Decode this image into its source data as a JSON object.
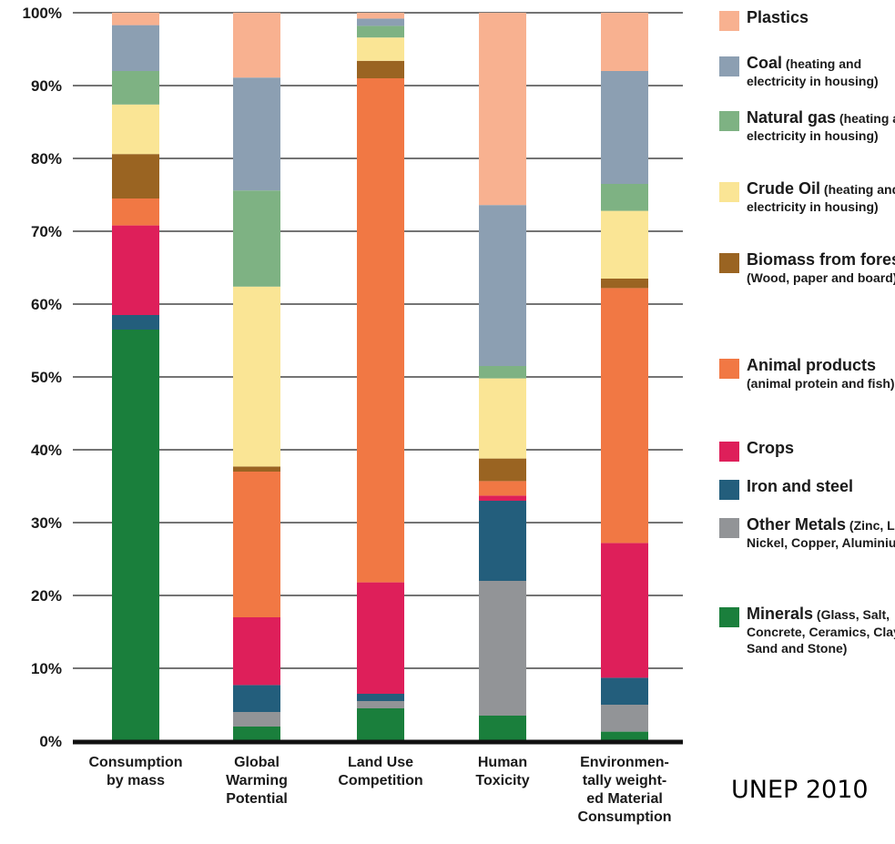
{
  "chart_data": {
    "type": "bar",
    "stacked": true,
    "categories": [
      [
        "Consumption",
        "by mass"
      ],
      [
        "Global",
        "Warming",
        "Potential"
      ],
      [
        "Land Use",
        "Competition"
      ],
      [
        "Human",
        "Toxicity"
      ],
      [
        "Environmen-",
        "tally weight-",
        "ed Material",
        "Consumption"
      ]
    ],
    "ylim": [
      0,
      100
    ],
    "yticks": [
      0,
      10,
      20,
      30,
      40,
      50,
      60,
      70,
      80,
      90,
      100
    ],
    "ytick_labels": [
      "0%",
      "10%",
      "20%",
      "30%",
      "40%",
      "50%",
      "60%",
      "70%",
      "80%",
      "90%",
      "100%"
    ],
    "grid": true,
    "legend_position": "right",
    "series": [
      {
        "name": "Minerals",
        "detail": "(Glass, Salt, Concrete, Ceramics, Clay, Sand and Stone)",
        "color": "#1a7f3c",
        "values": [
          56.5,
          2.0,
          4.5,
          3.5,
          1.3
        ]
      },
      {
        "name": "Other Metals",
        "detail": "(Zinc, Lead, Nickel, Copper, Aluminium)",
        "color": "#929497",
        "values": [
          0,
          2.0,
          1.0,
          18.5,
          3.7
        ]
      },
      {
        "name": "Iron and steel",
        "detail": "",
        "color": "#235e7c",
        "values": [
          2.0,
          3.7,
          1.0,
          11.0,
          3.7
        ]
      },
      {
        "name": "Crops",
        "detail": "",
        "color": "#de1f5a",
        "values": [
          12.3,
          9.3,
          15.3,
          0.7,
          18.5
        ]
      },
      {
        "name": "Animal products",
        "detail": "(animal protein and fish)",
        "color": "#f17844",
        "values": [
          3.7,
          20.0,
          69.2,
          2.0,
          35.0
        ]
      },
      {
        "name": "Biomass from forestry",
        "detail": "(Wood, paper and board)",
        "color": "#9a6422",
        "values": [
          6.1,
          0.7,
          2.4,
          3.1,
          1.3
        ]
      },
      {
        "name": "Crude Oil",
        "detail": "(heating and electricity in housing)",
        "color": "#fae595",
        "values": [
          6.8,
          24.7,
          3.2,
          11.0,
          9.3
        ]
      },
      {
        "name": "Natural gas",
        "detail": "(heating and electricity in housing)",
        "color": "#7eb283",
        "values": [
          4.6,
          13.2,
          1.6,
          1.7,
          3.7
        ]
      },
      {
        "name": "Coal",
        "detail": "(heating and electricity in housing)",
        "color": "#8c9fb2",
        "values": [
          6.3,
          15.5,
          1.0,
          22.1,
          15.5
        ]
      },
      {
        "name": "Plastics",
        "detail": "",
        "color": "#f8b190",
        "values": [
          1.7,
          8.9,
          0.8,
          26.4,
          8.0
        ]
      }
    ],
    "legend_order": [
      "Plastics",
      "Coal",
      "Natural gas",
      "Crude Oil",
      "Biomass from forestry",
      "Animal products",
      "Crops",
      "Iron and steel",
      "Other Metals",
      "Minerals"
    ]
  },
  "source_note": "UNEP 2010"
}
